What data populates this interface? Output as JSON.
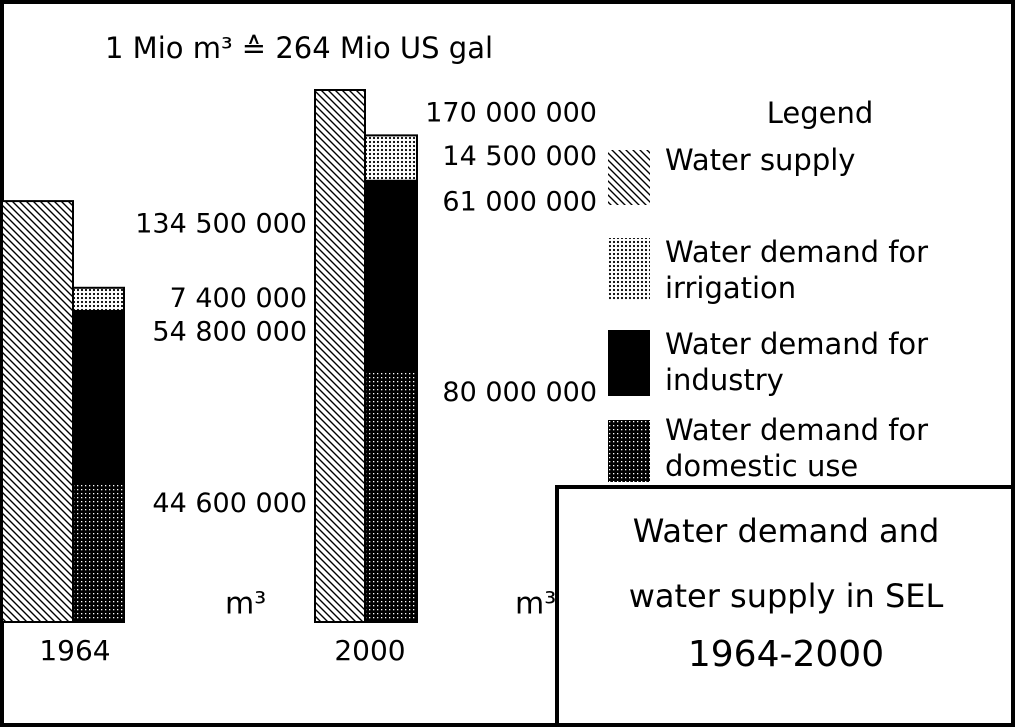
{
  "chart_data": {
    "type": "bar",
    "note": "1 Mio m³ ≙ 264 Mio US gal",
    "unit_label": "m³",
    "legend_title": "Legend",
    "title_lines": [
      "Water demand and",
      "water supply in SEL",
      "1964-2000"
    ],
    "categories": [
      "1964",
      "2000"
    ],
    "series": [
      {
        "name": "Water supply",
        "color": "#000000",
        "pattern": "hatch",
        "values": [
          134500000,
          170000000
        ],
        "value_labels": [
          "134 500 000",
          "170 000 000"
        ]
      },
      {
        "name": "Water demand for irrigation",
        "color": "#000000",
        "pattern": "dots",
        "values": [
          7400000,
          14500000
        ],
        "value_labels": [
          "7 400 000",
          "14 500 000"
        ]
      },
      {
        "name": "Water demand for industry",
        "color": "#000000",
        "pattern": "solid",
        "values": [
          54800000,
          61000000
        ],
        "value_labels": [
          "54 800 000",
          "61 000 000"
        ]
      },
      {
        "name": "Water demand for domestic use",
        "color": "#000000",
        "pattern": "grid",
        "values": [
          44600000,
          80000000
        ],
        "value_labels": [
          "44 600 000",
          "80 000 000"
        ]
      }
    ]
  }
}
